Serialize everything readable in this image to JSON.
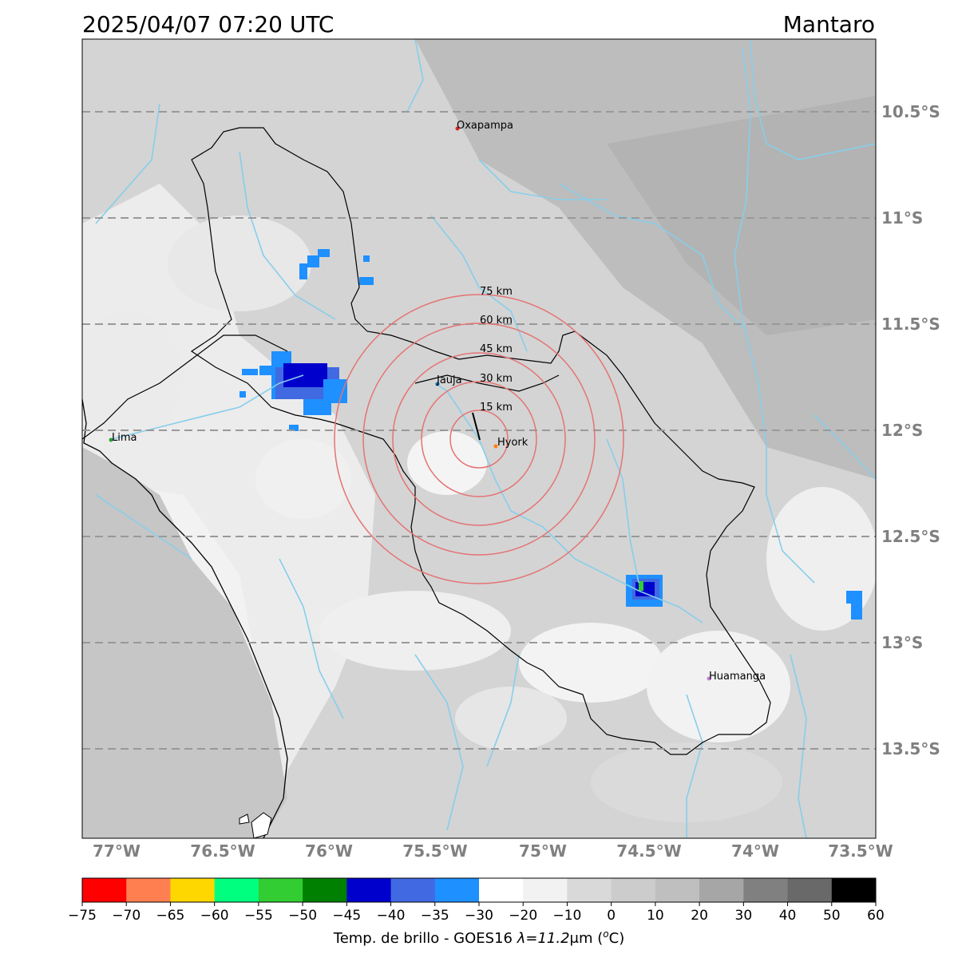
{
  "header": {
    "datetime": "2025/04/07 07:20 UTC",
    "region": "Mantaro"
  },
  "map": {
    "lat_labels": [
      "10.5°S",
      "11°S",
      "11.5°S",
      "12°S",
      "12.5°S",
      "13°S",
      "13.5°S"
    ],
    "lon_labels": [
      "77°W",
      "76.5°W",
      "76°W",
      "75.5°W",
      "75°W",
      "74.5°W",
      "74°W",
      "73.5°W"
    ],
    "cities": [
      {
        "name": "Oxapampa",
        "color": "#d62728"
      },
      {
        "name": "Jauja",
        "color": "#1f77b4"
      },
      {
        "name": "Hyork",
        "color": "#ff7f0e"
      },
      {
        "name": "Lima",
        "color": "#2ca02c"
      },
      {
        "name": "Huamanga",
        "color": "#c77ddb"
      }
    ],
    "rings": [
      "15 km",
      "30 km",
      "45 km",
      "60 km",
      "75 km"
    ],
    "ring_color": "#e57373",
    "river_color": "#87ceeb"
  },
  "colorbar": {
    "ticks": [
      "−75",
      "−70",
      "−65",
      "−60",
      "−55",
      "−50",
      "−45",
      "−40",
      "−35",
      "−30",
      "−20",
      "−10",
      "0",
      "10",
      "20",
      "30",
      "40",
      "50",
      "60"
    ],
    "colors": [
      "#ff0000",
      "#ff7f50",
      "#ffd700",
      "#00ff7f",
      "#32cd32",
      "#008000",
      "#0000cd",
      "#4169e1",
      "#1e90ff",
      "#ffffff",
      "#f2f2f2",
      "#d9d9d9",
      "#cccccc",
      "#bfbfbf",
      "#a6a6a6",
      "#808080",
      "#696969",
      "#000000"
    ],
    "label_prefix": "Temp. de brillo - GOES16 ",
    "label_lambda": "λ=11.2",
    "label_unit": "μm (",
    "label_sup": "o",
    "label_suffix": "C)"
  }
}
